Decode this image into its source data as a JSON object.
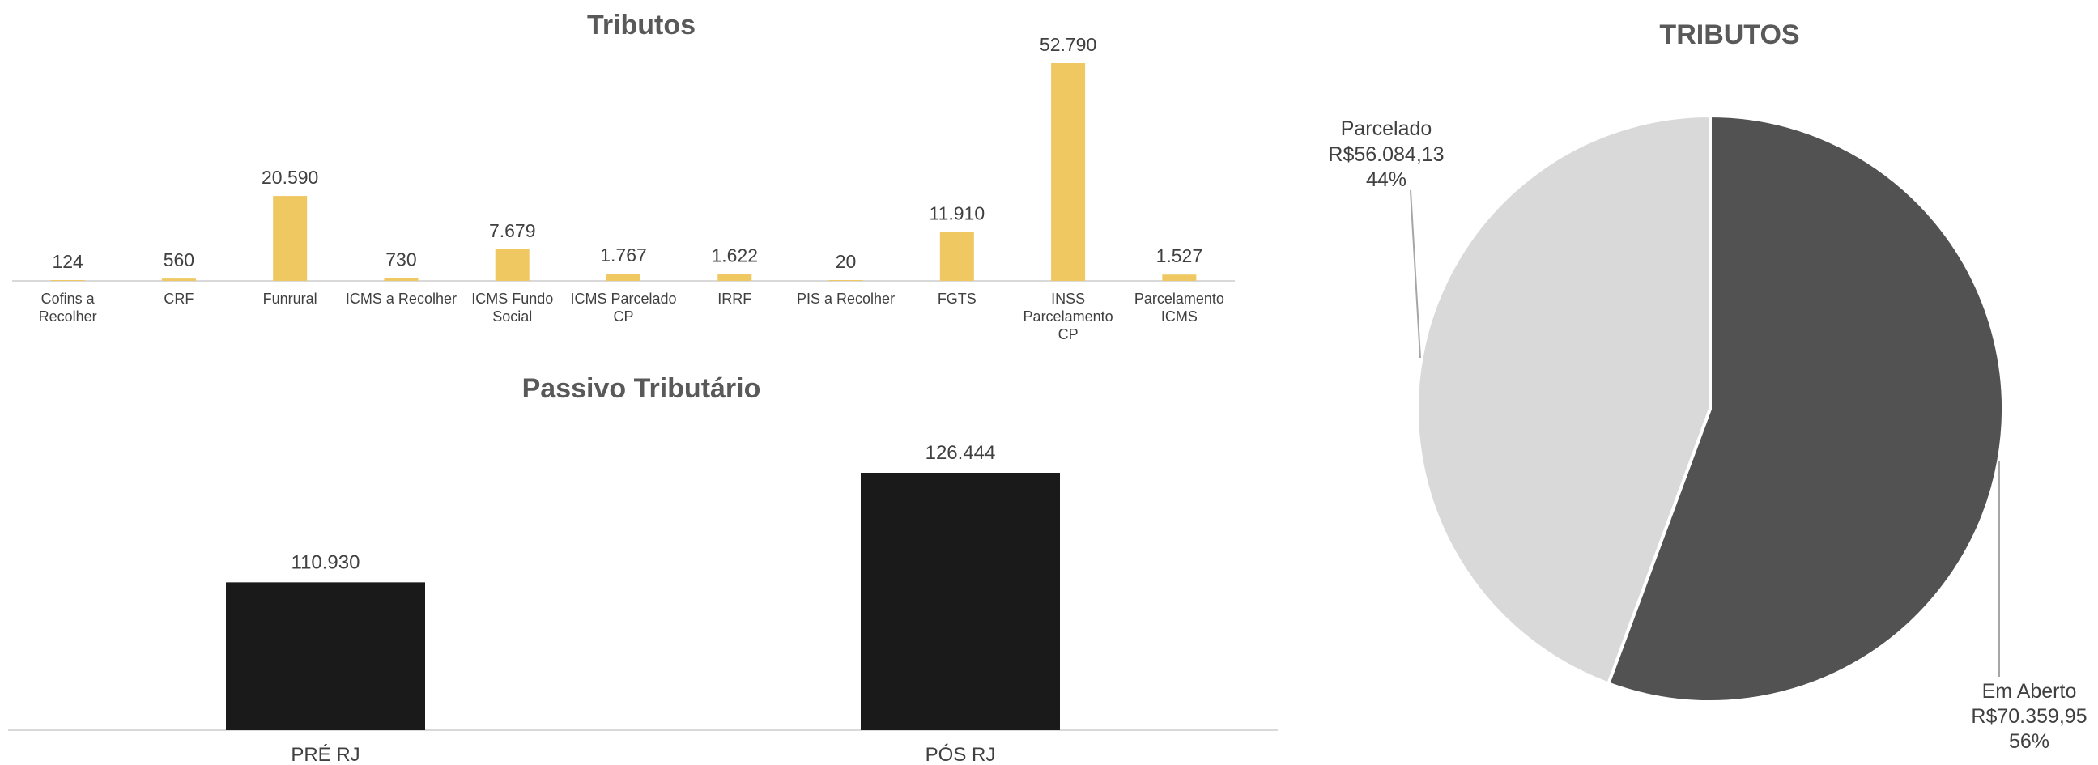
{
  "chart_data": [
    {
      "type": "bar",
      "title": "Tributos",
      "categories": [
        "Cofins a Recolher",
        "CRF",
        "Funrural",
        "ICMS a Recolher",
        "ICMS Fundo Social",
        "ICMS Parcelado CP",
        "IRRF",
        "PIS a Recolher",
        "FGTS",
        "INSS Parcelamento CP",
        "Parcelamento ICMS"
      ],
      "values": [
        124,
        560,
        20590,
        730,
        7679,
        1767,
        1622,
        20,
        11910,
        52790,
        1527
      ],
      "data_labels": [
        "124",
        "560",
        "20.590",
        "730",
        "7.679",
        "1.767",
        "1.622",
        "20",
        "11.910",
        "52.790",
        "1.527"
      ],
      "colors": {
        "bar": "#efc862",
        "axis": "#d9d9d9"
      },
      "grid": false
    },
    {
      "type": "bar",
      "title": "Passivo Tributário",
      "categories": [
        "PRÉ RJ",
        "PÓS RJ"
      ],
      "values": [
        110930,
        126444
      ],
      "data_labels": [
        "110.930",
        "126.444"
      ],
      "colors": {
        "bar": "#1a1a1a",
        "axis": "#d9d9d9"
      },
      "grid": false
    },
    {
      "type": "pie",
      "title": "TRIBUTOS",
      "slices": [
        {
          "label": "Em Aberto",
          "value": 70359.95,
          "value_text": "R$70.359,95",
          "percent_text": "56%",
          "color": "#525252"
        },
        {
          "label": "Parcelado",
          "value": 56084.13,
          "value_text": "R$56.084,13",
          "percent_text": "44%",
          "color": "#d9d9d9"
        }
      ]
    }
  ]
}
